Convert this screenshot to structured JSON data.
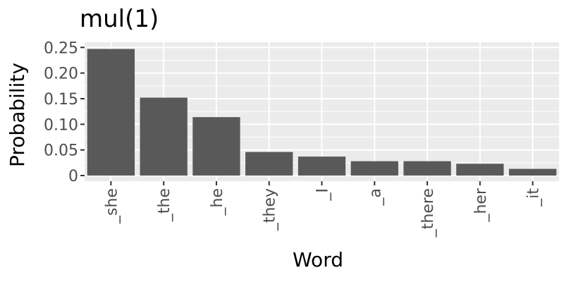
{
  "chart_data": {
    "type": "bar",
    "title": "mul(1)",
    "xlabel": "Word",
    "ylabel": "Probability",
    "categories": [
      "_she",
      "_the",
      "_he",
      "_they",
      "_I",
      "_a",
      "_there",
      "_her",
      "_it"
    ],
    "values": [
      0.247,
      0.152,
      0.114,
      0.046,
      0.037,
      0.028,
      0.028,
      0.023,
      0.013
    ],
    "ylim": [
      -0.011,
      0.26
    ],
    "y_ticks": [
      0,
      0.05,
      0.1,
      0.15,
      0.2,
      0.25
    ],
    "y_tick_labels": [
      "0",
      "0.05",
      "0.10",
      "0.15",
      "0.20",
      "0.25"
    ],
    "grid": true,
    "colors": {
      "panel": "#ebebeb",
      "grid_major": "#ffffff",
      "bar": "#595959",
      "text": "#000000",
      "tick_text": "#4d4d4d",
      "tick_mark": "#333333"
    }
  }
}
